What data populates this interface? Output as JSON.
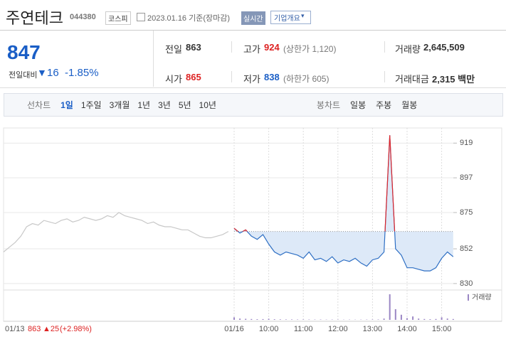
{
  "header": {
    "name": "주연테크",
    "code": "044380",
    "market": "코스피",
    "date": "2023.01.16 기준(장마감)",
    "realtime": "실시간",
    "company": "기업개요"
  },
  "quote": {
    "price": "847",
    "change_label": "전일대비",
    "change": "16",
    "rate": "-1.85%",
    "items": [
      {
        "label": "전일",
        "value": "863"
      },
      {
        "label": "고가",
        "value": "924",
        "note": "(상한가 1,120)"
      },
      {
        "label": "거래량",
        "value": "2,645,509"
      },
      {
        "label": "시가",
        "value": "865"
      },
      {
        "label": "저가",
        "value": "838",
        "note": "(하한가 605)"
      },
      {
        "label": "거래대금",
        "value": "2,315 백만"
      }
    ]
  },
  "tabs": {
    "line_label": "선차트",
    "line": [
      "1일",
      "1주일",
      "3개월",
      "1년",
      "3년",
      "5년",
      "10년"
    ],
    "candle_label": "봉차트",
    "candle": [
      "일봉",
      "주봉",
      "월봉"
    ]
  },
  "chart_data": {
    "type": "line",
    "x": [
      "01/13",
      null,
      null,
      null,
      null,
      null,
      null,
      null,
      null,
      null,
      null,
      null,
      null,
      null,
      null,
      null,
      null,
      null,
      null,
      null,
      null,
      null,
      null,
      null,
      null,
      null,
      null,
      null,
      null,
      null,
      null,
      null,
      null,
      null,
      null,
      null,
      null,
      null,
      null,
      null,
      "01/16",
      null,
      null,
      null,
      null,
      null,
      "10:00",
      null,
      null,
      null,
      null,
      null,
      "11:00",
      null,
      null,
      null,
      null,
      null,
      "12:00",
      null,
      null,
      null,
      null,
      null,
      "13:00",
      null,
      null,
      null,
      null,
      null,
      "14:00",
      null,
      null,
      null,
      null,
      null,
      "15:00",
      null,
      null
    ],
    "series": [
      {
        "color": "#c8c8c8",
        "values": [
          850,
          853,
          856,
          860,
          866,
          868,
          867,
          870,
          869,
          868,
          870,
          871,
          869,
          870,
          872,
          871,
          870,
          871,
          873,
          872,
          875,
          873,
          872,
          871,
          870,
          868,
          869,
          867,
          866,
          866,
          865,
          864,
          864,
          862,
          860,
          859,
          859,
          860,
          861,
          863,
          null,
          null,
          null,
          null,
          null,
          null,
          null,
          null,
          null,
          null,
          null,
          null,
          null,
          null,
          null,
          null,
          null,
          null,
          null,
          null,
          null,
          null,
          null,
          null,
          null,
          null,
          null,
          null,
          null,
          null,
          null,
          null,
          null,
          null,
          null,
          null,
          null,
          null,
          null
        ]
      },
      {
        "color": "#2e6fc4",
        "up_color": "#e0262a",
        "values": [
          null,
          null,
          null,
          null,
          null,
          null,
          null,
          null,
          null,
          null,
          null,
          null,
          null,
          null,
          null,
          null,
          null,
          null,
          null,
          null,
          null,
          null,
          null,
          null,
          null,
          null,
          null,
          null,
          null,
          null,
          null,
          null,
          null,
          null,
          null,
          null,
          null,
          null,
          null,
          null,
          865,
          862,
          864,
          860,
          858,
          861,
          855,
          850,
          848,
          850,
          849,
          848,
          846,
          850,
          845,
          846,
          844,
          847,
          843,
          845,
          844,
          846,
          843,
          841,
          845,
          846,
          850,
          924,
          852,
          848,
          840,
          840,
          839,
          838,
          838,
          840,
          846,
          850,
          847
        ]
      }
    ],
    "prev_close": 863,
    "area_color": "#dde9f8",
    "ylim": [
      825,
      925
    ],
    "yticks": [
      830,
      852,
      875,
      897,
      919
    ],
    "grid": true,
    "volume_label": "거래량",
    "volume_color": "#9b87c4",
    "volume": [
      null,
      null,
      null,
      null,
      null,
      null,
      null,
      null,
      null,
      null,
      null,
      null,
      null,
      null,
      null,
      null,
      null,
      null,
      null,
      null,
      null,
      null,
      null,
      null,
      null,
      null,
      null,
      null,
      null,
      null,
      null,
      null,
      null,
      null,
      null,
      null,
      null,
      null,
      null,
      null,
      60000,
      30000,
      25000,
      20000,
      15000,
      18000,
      25000,
      15000,
      12000,
      10000,
      10000,
      8000,
      9000,
      8000,
      7000,
      8000,
      6000,
      7000,
      6000,
      5000,
      6000,
      5000,
      6000,
      7000,
      8000,
      9000,
      30000,
      600000,
      250000,
      120000,
      40000,
      80000,
      30000,
      20000,
      15000,
      20000,
      60000,
      30000,
      20000
    ]
  },
  "footer": {
    "close": "863",
    "change": "▲25",
    "rate": "(+2.98%)"
  }
}
